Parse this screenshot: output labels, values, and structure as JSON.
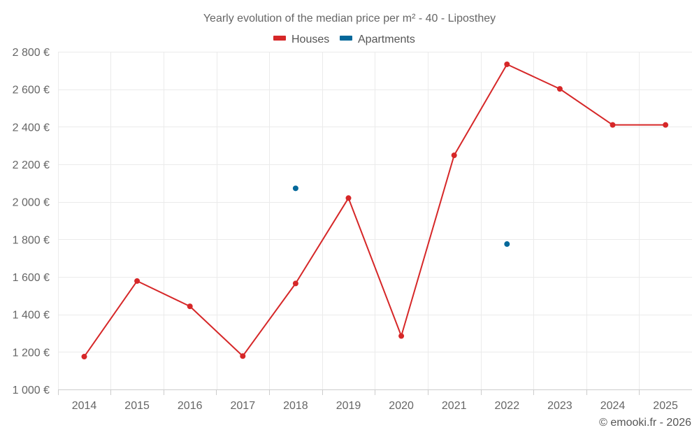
{
  "chart_data": {
    "type": "line",
    "title": "Yearly evolution of the median price per m² - 40 - Liposthey",
    "categories": [
      "2014",
      "2015",
      "2016",
      "2017",
      "2018",
      "2019",
      "2020",
      "2021",
      "2022",
      "2023",
      "2024",
      "2025"
    ],
    "series": [
      {
        "name": "Houses",
        "color": "#d62728",
        "values": [
          1175,
          1578,
          1443,
          1178,
          1565,
          2020,
          1285,
          2248,
          2733,
          2602,
          2410,
          2410
        ]
      },
      {
        "name": "Apartments",
        "color": "#03689a",
        "values": [
          null,
          null,
          null,
          null,
          2072,
          null,
          null,
          null,
          1775,
          null,
          null,
          null
        ]
      }
    ],
    "ylim": [
      1000,
      2800
    ],
    "yticks": [
      1000,
      1200,
      1400,
      1600,
      1800,
      2000,
      2200,
      2400,
      2600,
      2800
    ],
    "ytick_labels": [
      "1 000 €",
      "1 200 €",
      "1 400 €",
      "1 600 €",
      "1 800 €",
      "2 000 €",
      "2 200 €",
      "2 400 €",
      "2 600 €",
      "2 800 €"
    ],
    "xlabel": "",
    "ylabel": "",
    "grid": true,
    "legend_position": "top-center"
  },
  "credit": "© emooki.fr - 2026"
}
